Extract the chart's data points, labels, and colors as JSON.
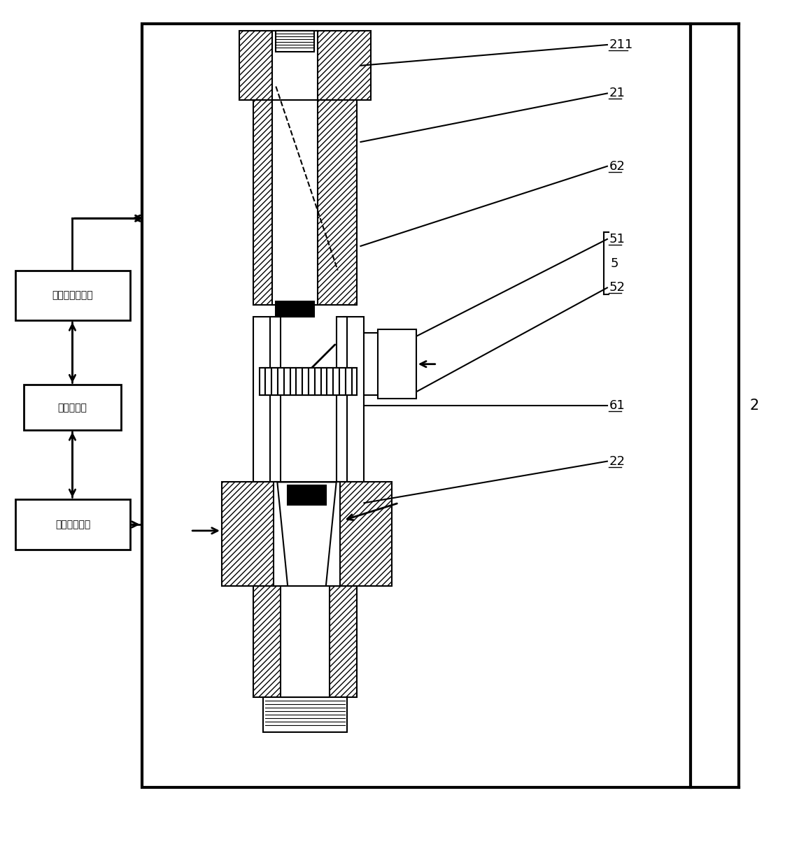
{
  "bg_color": "#ffffff",
  "labels": {
    "digital_display": "数字荆光示波器",
    "data_collector": "数据采集器",
    "impulse_controller": "脉冲据控制器"
  },
  "fig_w": 11.52,
  "fig_h": 12.27
}
